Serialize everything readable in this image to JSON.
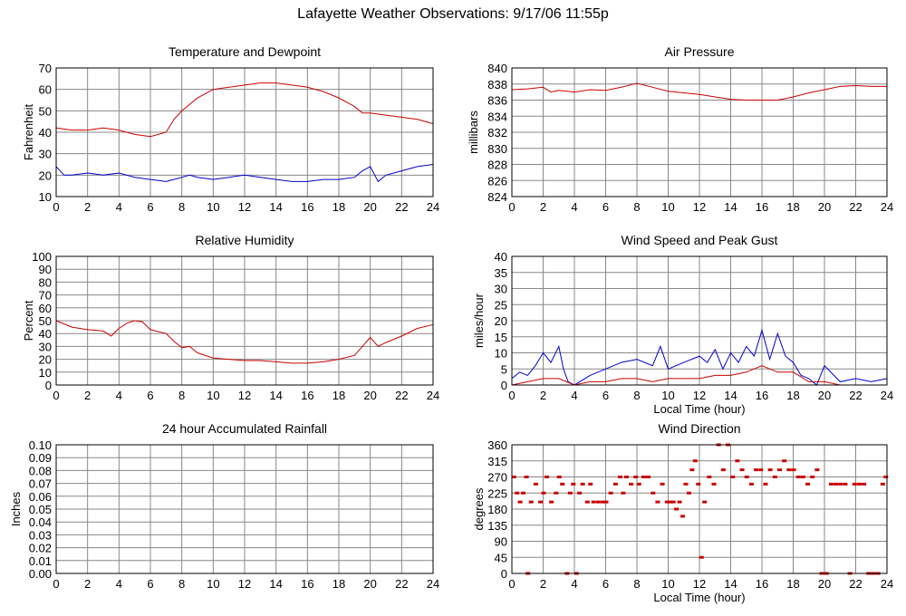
{
  "page_title": "Lafayette Weather Observations: 9/17/06 11:55p",
  "colors": {
    "red": "#cc0000",
    "blue": "#0000cc",
    "grid": "#888888"
  },
  "chart_data": [
    {
      "id": "temp",
      "type": "line",
      "title": "Temperature and Dewpoint",
      "xlabel": "",
      "ylabel": "Fahrenheit",
      "xlim": [
        0,
        24
      ],
      "ylim": [
        10,
        70
      ],
      "x_ticks": [
        "0",
        "2",
        "4",
        "6",
        "8",
        "10",
        "12",
        "14",
        "16",
        "18",
        "20",
        "22",
        "24"
      ],
      "y_ticks": [
        "10",
        "20",
        "30",
        "40",
        "50",
        "60",
        "70"
      ],
      "series": [
        {
          "color": "#cc0000",
          "x": [
            0,
            1,
            2,
            3,
            4,
            5,
            6,
            7,
            7.5,
            8,
            8.5,
            9,
            9.5,
            10,
            11,
            12,
            13,
            14,
            15,
            16,
            17,
            18,
            19,
            19.5,
            20,
            21,
            22,
            23,
            24
          ],
          "y": [
            42,
            41,
            41,
            42,
            41,
            39,
            38,
            40,
            46,
            50,
            53,
            56,
            58,
            60,
            61,
            62,
            63,
            63,
            62,
            61,
            59,
            56,
            52,
            49,
            49,
            48,
            47,
            46,
            44
          ]
        },
        {
          "color": "#0000cc",
          "x": [
            0,
            0.5,
            1,
            2,
            3,
            4,
            5,
            6,
            7,
            7.5,
            8,
            8.5,
            9,
            10,
            11,
            12,
            13,
            14,
            15,
            16,
            17,
            18,
            19,
            19.5,
            20,
            20.5,
            21,
            22,
            23,
            24
          ],
          "y": [
            24,
            20,
            20,
            21,
            20,
            21,
            19,
            18,
            17,
            18,
            19,
            20,
            19,
            18,
            19,
            20,
            19,
            18,
            17,
            17,
            18,
            18,
            19,
            22,
            24,
            17,
            20,
            22,
            24,
            25
          ]
        }
      ]
    },
    {
      "id": "pressure",
      "type": "line",
      "title": "Air Pressure",
      "xlabel": "",
      "ylabel": "millibars",
      "xlim": [
        0,
        24
      ],
      "ylim": [
        824,
        840
      ],
      "x_ticks": [
        "0",
        "2",
        "4",
        "6",
        "8",
        "10",
        "12",
        "14",
        "16",
        "18",
        "20",
        "22",
        "24"
      ],
      "y_ticks": [
        "824",
        "826",
        "828",
        "830",
        "832",
        "834",
        "836",
        "838",
        "840"
      ],
      "series": [
        {
          "color": "#cc0000",
          "x": [
            0,
            1,
            2,
            2.5,
            3,
            4,
            5,
            6,
            7,
            8,
            9,
            10,
            11,
            12,
            13,
            14,
            15,
            16,
            17,
            18,
            19,
            20,
            21,
            22,
            23,
            24
          ],
          "y": [
            837.3,
            837.4,
            837.6,
            837.0,
            837.2,
            837.0,
            837.3,
            837.2,
            837.6,
            838.1,
            837.6,
            837.1,
            836.9,
            836.7,
            836.4,
            836.1,
            836.0,
            836.0,
            836.0,
            836.4,
            836.9,
            837.3,
            837.7,
            837.8,
            837.7,
            837.7
          ]
        }
      ]
    },
    {
      "id": "humidity",
      "type": "line",
      "title": "Relative Humidity",
      "xlabel": "",
      "ylabel": "Percent",
      "xlim": [
        0,
        24
      ],
      "ylim": [
        0,
        100
      ],
      "x_ticks": [
        "0",
        "2",
        "4",
        "6",
        "8",
        "10",
        "12",
        "14",
        "16",
        "18",
        "20",
        "22",
        "24"
      ],
      "y_ticks": [
        "0",
        "10",
        "20",
        "30",
        "40",
        "50",
        "60",
        "70",
        "80",
        "90",
        "100"
      ],
      "series": [
        {
          "color": "#cc0000",
          "x": [
            0,
            1,
            2,
            3,
            3.5,
            4,
            4.5,
            5,
            5.5,
            6,
            7,
            7.5,
            8,
            8.5,
            9,
            10,
            11,
            12,
            13,
            14,
            15,
            16,
            17,
            18,
            19,
            19.5,
            20,
            20.5,
            21,
            22,
            23,
            24
          ],
          "y": [
            50,
            45,
            43,
            42,
            38,
            44,
            48,
            50,
            49,
            43,
            40,
            34,
            29,
            30,
            25,
            21,
            20,
            19,
            19,
            18,
            17,
            17,
            18,
            20,
            23,
            30,
            37,
            30,
            33,
            38,
            44,
            47
          ]
        }
      ]
    },
    {
      "id": "wind",
      "type": "line",
      "title": "Wind Speed and Peak Gust",
      "xlabel": "Local Time (hour)",
      "ylabel": "miles/hour",
      "xlim": [
        0,
        24
      ],
      "ylim": [
        0,
        40
      ],
      "x_ticks": [
        "0",
        "2",
        "4",
        "6",
        "8",
        "10",
        "12",
        "14",
        "16",
        "18",
        "20",
        "22",
        "24"
      ],
      "y_ticks": [
        "0",
        "5",
        "10",
        "15",
        "20",
        "25",
        "30",
        "35",
        "40"
      ],
      "series": [
        {
          "color": "#0000cc",
          "x": [
            0,
            0.5,
            1,
            1.5,
            2,
            2.5,
            3,
            3.3,
            3.6,
            4,
            5,
            6,
            7,
            8,
            9,
            9.5,
            10,
            11,
            12,
            12.5,
            13,
            13.5,
            14,
            14.5,
            15,
            15.5,
            16,
            16.5,
            17,
            17.5,
            18,
            18.5,
            19,
            19.5,
            20,
            21,
            22,
            23,
            24
          ],
          "y": [
            2,
            4,
            3,
            6,
            10,
            7,
            12,
            5,
            1,
            0,
            3,
            5,
            7,
            8,
            6,
            12,
            5,
            7,
            9,
            7,
            11,
            5,
            10,
            7,
            12,
            9,
            17,
            8,
            16,
            9,
            7,
            3,
            2,
            0,
            6,
            1,
            2,
            1,
            2
          ]
        },
        {
          "color": "#cc0000",
          "x": [
            0,
            1,
            2,
            3,
            4,
            5,
            6,
            7,
            8,
            9,
            10,
            11,
            12,
            13,
            14,
            15,
            16,
            17,
            18,
            19,
            20,
            21,
            22,
            23,
            24
          ],
          "y": [
            0,
            1,
            2,
            2,
            0,
            1,
            1,
            2,
            2,
            1,
            2,
            2,
            2,
            3,
            3,
            4,
            6,
            4,
            4,
            1,
            1,
            0,
            0,
            0,
            0
          ]
        }
      ]
    },
    {
      "id": "rain",
      "type": "line",
      "title": "24 hour Accumulated Rainfall",
      "xlabel": "",
      "ylabel": "Inches",
      "xlim": [
        0,
        24
      ],
      "ylim": [
        0,
        0.1
      ],
      "x_ticks": [
        "0",
        "2",
        "4",
        "6",
        "8",
        "10",
        "12",
        "14",
        "16",
        "18",
        "20",
        "22",
        "24"
      ],
      "y_ticks": [
        "0.00",
        "0.01",
        "0.02",
        "0.03",
        "0.04",
        "0.05",
        "0.06",
        "0.07",
        "0.08",
        "0.09",
        "0.10"
      ],
      "series": [
        {
          "color": "#cc0000",
          "x": [
            0,
            24
          ],
          "y": [
            0,
            0
          ]
        }
      ]
    },
    {
      "id": "direction",
      "type": "scatter",
      "title": "Wind Direction",
      "xlabel": "Local Time (hour)",
      "ylabel": "degrees",
      "xlim": [
        0,
        24
      ],
      "ylim": [
        0,
        360
      ],
      "x_ticks": [
        "0",
        "2",
        "4",
        "6",
        "8",
        "10",
        "12",
        "14",
        "16",
        "18",
        "20",
        "22",
        "24"
      ],
      "y_ticks": [
        "0",
        "45",
        "90",
        "135",
        "180",
        "225",
        "270",
        "315",
        "360"
      ],
      "series": [
        {
          "color": "#cc0000",
          "x": [
            0.1,
            0.3,
            0.5,
            0.7,
            0.9,
            1.0,
            1.2,
            1.5,
            1.8,
            2.0,
            2.2,
            2.5,
            2.8,
            3.0,
            3.2,
            3.5,
            3.7,
            3.9,
            4.1,
            4.3,
            4.5,
            4.8,
            5.0,
            5.2,
            5.5,
            5.8,
            6.0,
            6.3,
            6.6,
            6.9,
            7.1,
            7.3,
            7.6,
            7.9,
            8.1,
            8.4,
            8.7,
            9.0,
            9.3,
            9.6,
            9.9,
            10.1,
            10.3,
            10.5,
            10.7,
            10.9,
            11.1,
            11.3,
            11.5,
            11.7,
            11.9,
            12.1,
            12.3,
            12.6,
            12.9,
            13.2,
            13.5,
            13.8,
            14.1,
            14.4,
            14.7,
            15.0,
            15.3,
            15.6,
            15.9,
            16.2,
            16.5,
            16.8,
            17.1,
            17.4,
            17.7,
            18.0,
            18.3,
            18.6,
            18.9,
            19.2,
            19.5,
            19.8,
            20.1,
            20.4,
            20.7,
            21.0,
            21.3,
            21.6,
            21.9,
            22.2,
            22.5,
            22.8,
            23.1,
            23.4,
            23.7,
            23.9
          ],
          "y": [
            270,
            225,
            200,
            225,
            270,
            0,
            200,
            250,
            200,
            225,
            270,
            200,
            225,
            270,
            250,
            0,
            225,
            250,
            0,
            225,
            250,
            200,
            250,
            200,
            200,
            200,
            200,
            225,
            250,
            270,
            225,
            270,
            250,
            270,
            250,
            270,
            270,
            225,
            200,
            250,
            200,
            200,
            200,
            180,
            200,
            160,
            250,
            225,
            290,
            315,
            250,
            45,
            200,
            270,
            250,
            360,
            290,
            360,
            270,
            315,
            290,
            270,
            250,
            290,
            290,
            250,
            290,
            270,
            290,
            315,
            290,
            290,
            270,
            270,
            250,
            270,
            290,
            0,
            0,
            250,
            250,
            250,
            250,
            0,
            250,
            250,
            250,
            0,
            0,
            0,
            250,
            270
          ]
        }
      ]
    }
  ]
}
